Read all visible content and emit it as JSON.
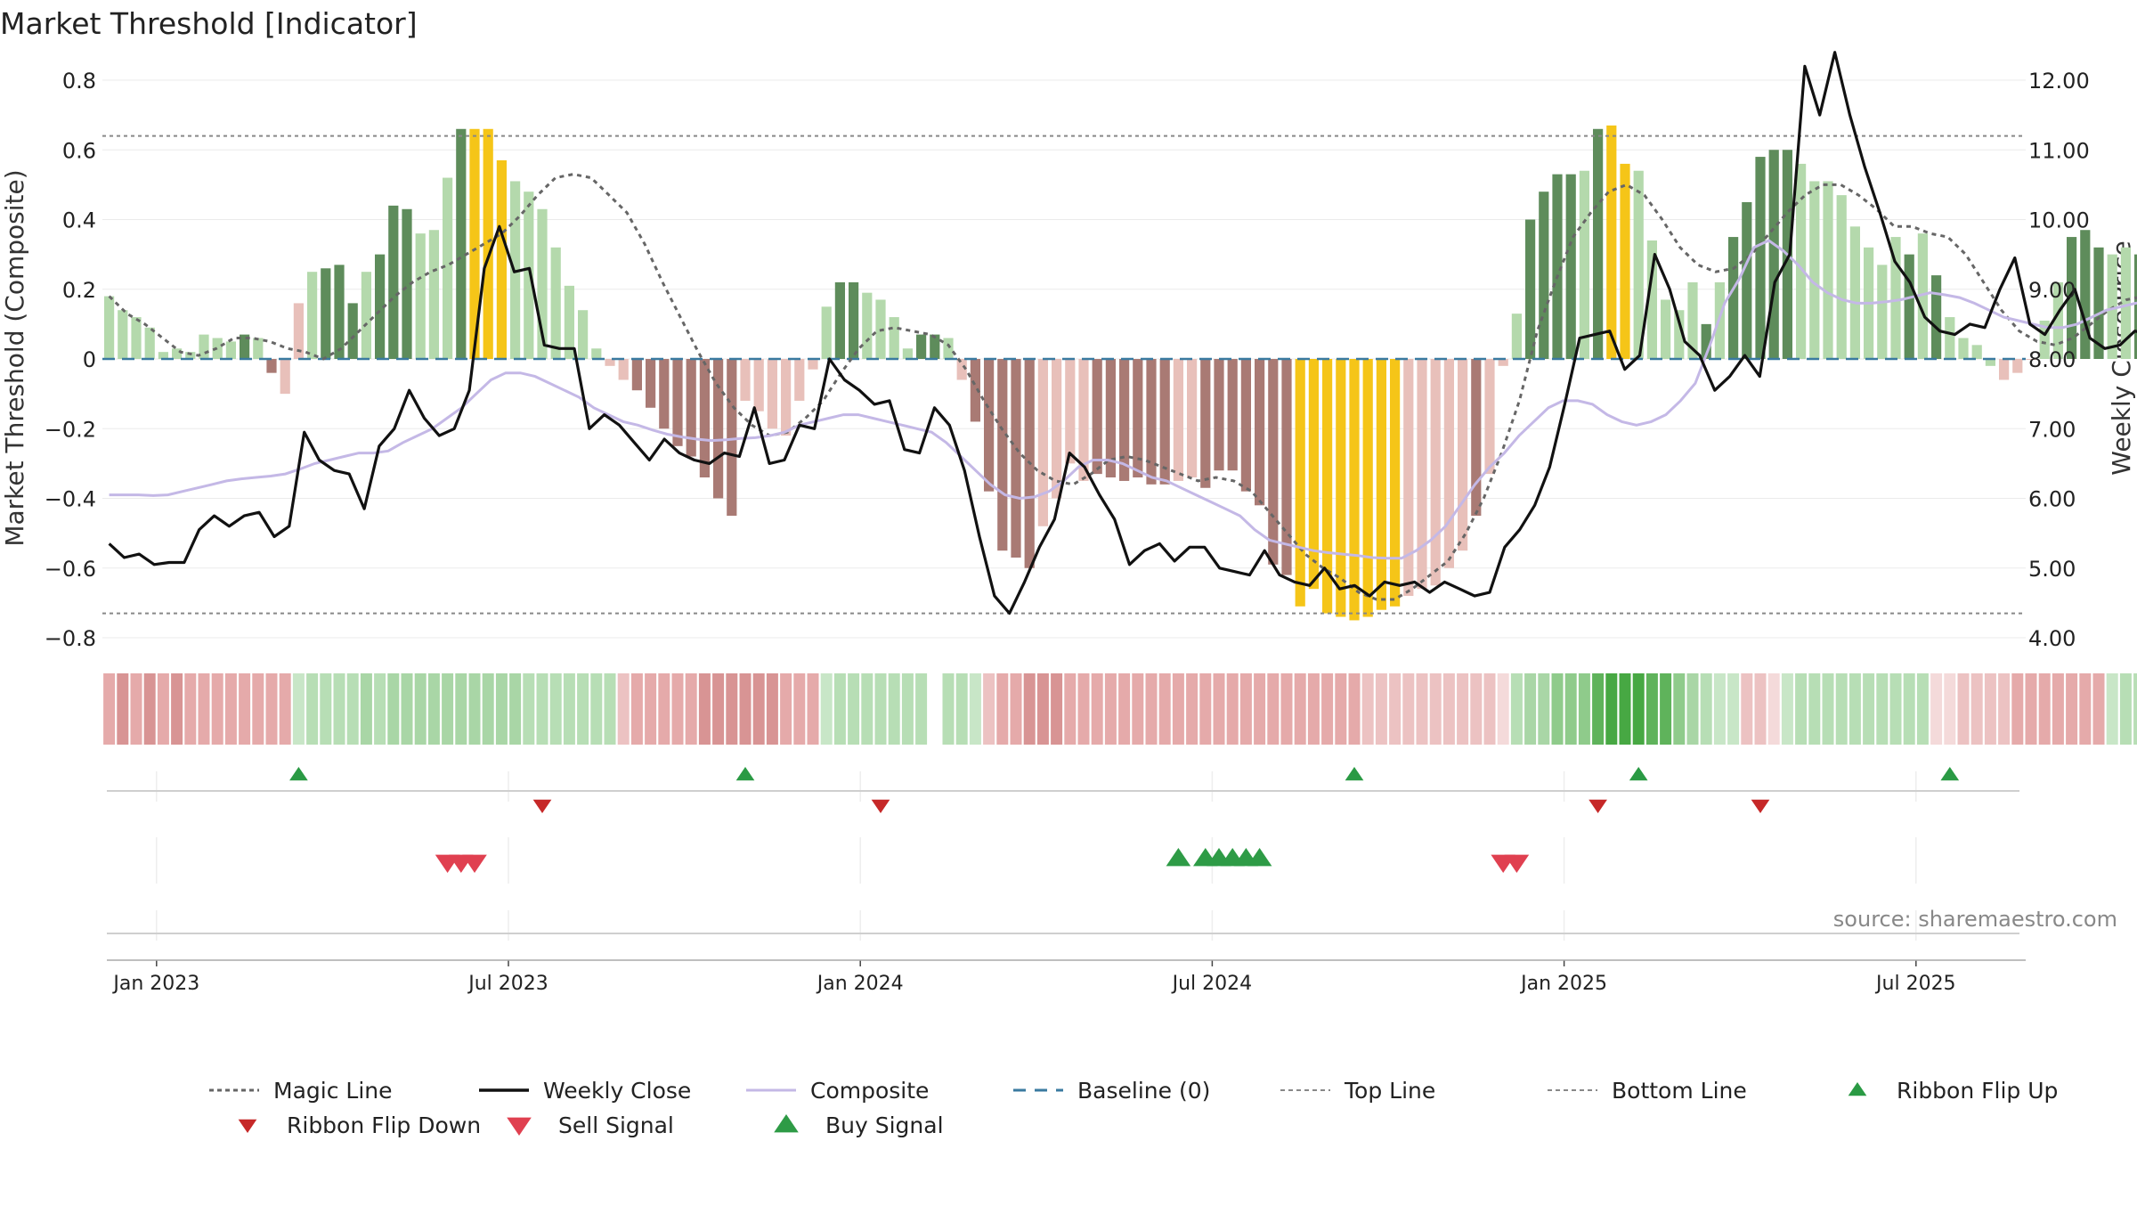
{
  "chart_data": {
    "type": "bar",
    "title": "Market Threshold [Indicator]",
    "ylabel_left": "Market Threshold (Composite)",
    "ylabel_right": "Weekly Close Price",
    "source": "source: sharemaestro.com",
    "ylim_left": [
      -0.8,
      0.8
    ],
    "ylim_right": [
      4.0,
      12.0
    ],
    "yticks_left": [
      {
        "v": 0.8,
        "label": "0.8"
      },
      {
        "v": 0.6,
        "label": "0.6"
      },
      {
        "v": 0.4,
        "label": "0.4"
      },
      {
        "v": 0.2,
        "label": "0.2"
      },
      {
        "v": 0,
        "label": "0"
      },
      {
        "v": -0.2,
        "label": "−0.2"
      },
      {
        "v": -0.4,
        "label": "−0.4"
      },
      {
        "v": -0.6,
        "label": "−0.6"
      },
      {
        "v": -0.8,
        "label": "−0.8"
      }
    ],
    "yticks_right": [
      {
        "v": 12,
        "label": "12.00"
      },
      {
        "v": 11,
        "label": "11.00"
      },
      {
        "v": 10,
        "label": "10.00"
      },
      {
        "v": 9,
        "label": "9.00"
      },
      {
        "v": 8,
        "label": "8.00"
      },
      {
        "v": 7,
        "label": "7.00"
      },
      {
        "v": 6,
        "label": "6.00"
      },
      {
        "v": 5,
        "label": "5.00"
      },
      {
        "v": 4,
        "label": "4.00"
      }
    ],
    "xticks": [
      {
        "w": 3.5,
        "label": "Jan 2023"
      },
      {
        "w": 29.5,
        "label": "Jul 2023"
      },
      {
        "w": 55.5,
        "label": "Jan 2024"
      },
      {
        "w": 81.5,
        "label": "Jul 2024"
      },
      {
        "w": 107.5,
        "label": "Jan 2025"
      },
      {
        "w": 133.5,
        "label": "Jul 2025"
      }
    ],
    "top_line": 0.64,
    "bottom_line": -0.73,
    "composite_values": [
      0.18,
      0.14,
      0.12,
      0.09,
      0.02,
      0.03,
      0.02,
      0.07,
      0.06,
      0.05,
      0.07,
      0.06,
      -0.04,
      -0.1,
      0.16,
      0.25,
      0.26,
      0.27,
      0.16,
      0.25,
      0.3,
      0.44,
      0.43,
      0.36,
      0.37,
      0.52,
      0.66,
      0.66,
      0.66,
      0.57,
      0.51,
      0.48,
      0.43,
      0.32,
      0.21,
      0.14,
      0.03,
      -0.02,
      -0.06,
      -0.09,
      -0.14,
      -0.2,
      -0.25,
      -0.28,
      -0.34,
      -0.4,
      -0.45,
      -0.12,
      -0.15,
      -0.2,
      -0.22,
      -0.12,
      -0.03,
      0.15,
      0.22,
      0.22,
      0.19,
      0.17,
      0.12,
      0.03,
      0.07,
      0.07,
      0.06,
      -0.06,
      -0.18,
      -0.38,
      -0.55,
      -0.57,
      -0.6,
      -0.48,
      -0.4,
      -0.3,
      -0.35,
      -0.33,
      -0.34,
      -0.35,
      -0.34,
      -0.36,
      -0.36,
      -0.35,
      -0.34,
      -0.37,
      -0.32,
      -0.32,
      -0.38,
      -0.42,
      -0.59,
      -0.62,
      -0.71,
      -0.66,
      -0.73,
      -0.74,
      -0.75,
      -0.74,
      -0.72,
      -0.71,
      -0.68,
      -0.66,
      -0.65,
      -0.6,
      -0.55,
      -0.45,
      -0.33,
      -0.02,
      0.13,
      0.4,
      0.48,
      0.53,
      0.53,
      0.54,
      0.66,
      0.67,
      0.56,
      0.54,
      0.34,
      0.17,
      0.14,
      0.22,
      0.1,
      0.22,
      0.35,
      0.45,
      0.58,
      0.6,
      0.6,
      0.56,
      0.51,
      0.51,
      0.47,
      0.38,
      0.32,
      0.27,
      0.35,
      0.3,
      0.36,
      0.24,
      0.12,
      0.06,
      0.04,
      -0.02,
      -0.06,
      -0.04,
      0,
      0.11,
      0.22,
      0.35,
      0.37,
      0.32,
      0.3,
      0.32,
      0.3,
      0.28,
      0.28,
      0.25
    ],
    "composite_colors": [
      "#b4d9ac",
      "#b4d9ac",
      "#b4d9ac",
      "#b4d9ac",
      "#b4d9ac",
      "#b4d9ac",
      "#b4d9ac",
      "#b4d9ac",
      "#b4d9ac",
      "#b4d9ac",
      "#5e8c5b",
      "#b4d9ac",
      "#a97a74",
      "#e8c0ba",
      "#e8c0ba",
      "#b4d9ac",
      "#5e8c5b",
      "#5e8c5b",
      "#5e8c5b",
      "#b4d9ac",
      "#5e8c5b",
      "#5e8c5b",
      "#5e8c5b",
      "#b4d9ac",
      "#b4d9ac",
      "#b4d9ac",
      "#5e8c5b",
      "#f5c518",
      "#f5c518",
      "#f5c518",
      "#b4d9ac",
      "#b4d9ac",
      "#b4d9ac",
      "#b4d9ac",
      "#b4d9ac",
      "#b4d9ac",
      "#b4d9ac",
      "#e8c0ba",
      "#e8c0ba",
      "#a97a74",
      "#a97a74",
      "#a97a74",
      "#a97a74",
      "#a97a74",
      "#a97a74",
      "#a97a74",
      "#a97a74",
      "#e8c0ba",
      "#e8c0ba",
      "#e8c0ba",
      "#e8c0ba",
      "#e8c0ba",
      "#e8c0ba",
      "#b4d9ac",
      "#5e8c5b",
      "#5e8c5b",
      "#b4d9ac",
      "#b4d9ac",
      "#b4d9ac",
      "#b4d9ac",
      "#5e8c5b",
      "#5e8c5b",
      "#b4d9ac",
      "#e8c0ba",
      "#a97a74",
      "#a97a74",
      "#a97a74",
      "#a97a74",
      "#a97a74",
      "#e8c0ba",
      "#e8c0ba",
      "#e8c0ba",
      "#e8c0ba",
      "#a97a74",
      "#a97a74",
      "#a97a74",
      "#a97a74",
      "#a97a74",
      "#a97a74",
      "#e8c0ba",
      "#e8c0ba",
      "#a97a74",
      "#a97a74",
      "#a97a74",
      "#a97a74",
      "#a97a74",
      "#a97a74",
      "#a97a74",
      "#f5c518",
      "#f5c518",
      "#f5c518",
      "#f5c518",
      "#f5c518",
      "#f5c518",
      "#f5c518",
      "#f5c518",
      "#e8c0ba",
      "#e8c0ba",
      "#e8c0ba",
      "#e8c0ba",
      "#e8c0ba",
      "#a97a74",
      "#e8c0ba",
      "#e8c0ba",
      "#b4d9ac",
      "#5e8c5b",
      "#5e8c5b",
      "#5e8c5b",
      "#5e8c5b",
      "#b4d9ac",
      "#5e8c5b",
      "#f5c518",
      "#f5c518",
      "#b4d9ac",
      "#b4d9ac",
      "#b4d9ac",
      "#b4d9ac",
      "#b4d9ac",
      "#5e8c5b",
      "#b4d9ac",
      "#5e8c5b",
      "#5e8c5b",
      "#5e8c5b",
      "#5e8c5b",
      "#5e8c5b",
      "#b4d9ac",
      "#b4d9ac",
      "#b4d9ac",
      "#b4d9ac",
      "#b4d9ac",
      "#b4d9ac",
      "#b4d9ac",
      "#b4d9ac",
      "#5e8c5b",
      "#b4d9ac",
      "#5e8c5b",
      "#b4d9ac",
      "#b4d9ac",
      "#b4d9ac",
      "#b4d9ac",
      "#e8c0ba",
      "#e8c0ba",
      "#e8c0ba",
      "#b4d9ac",
      "#b4d9ac",
      "#5e8c5b",
      "#5e8c5b",
      "#5e8c5b",
      "#b4d9ac",
      "#b4d9ac",
      "#5e8c5b",
      "#b4d9ac",
      "#b4d9ac",
      "#b4d9ac",
      "#b4d9ac"
    ],
    "magic_line": [
      0.18,
      0.13,
      0.1,
      0.06,
      0.02,
      0.01,
      0.03,
      0.06,
      0.06,
      0.05,
      0.03,
      0.02,
      0,
      0.03,
      0.08,
      0.13,
      0.18,
      0.22,
      0.25,
      0.27,
      0.3,
      0.33,
      0.36,
      0.41,
      0.47,
      0.52,
      0.53,
      0.52,
      0.47,
      0.42,
      0.33,
      0.22,
      0.12,
      0.02,
      -0.07,
      -0.14,
      -0.19,
      -0.22,
      -0.21,
      -0.17,
      -0.12,
      -0.04,
      0.03,
      0.08,
      0.09,
      0.08,
      0.07,
      0.04,
      -0.03,
      -0.12,
      -0.2,
      -0.27,
      -0.32,
      -0.35,
      -0.36,
      -0.33,
      -0.29,
      -0.28,
      -0.29,
      -0.31,
      -0.33,
      -0.35,
      -0.34,
      -0.35,
      -0.38,
      -0.44,
      -0.5,
      -0.56,
      -0.6,
      -0.63,
      -0.67,
      -0.69,
      -0.69,
      -0.66,
      -0.62,
      -0.58,
      -0.5,
      -0.4,
      -0.27,
      -0.12,
      0.08,
      0.22,
      0.35,
      0.42,
      0.48,
      0.5,
      0.47,
      0.4,
      0.32,
      0.27,
      0.25,
      0.26,
      0.3,
      0.36,
      0.42,
      0.47,
      0.5,
      0.5,
      0.47,
      0.43,
      0.38,
      0.38,
      0.36,
      0.35,
      0.3,
      0.22,
      0.14,
      0.08,
      0.05,
      0.04,
      0.06,
      0.1,
      0.14,
      0.17,
      0.18,
      0.2,
      0.18
    ],
    "magic_line_start": 0,
    "weekly_close": [
      5.35,
      5.15,
      5.2,
      5.05,
      5.08,
      5.08,
      5.55,
      5.75,
      5.6,
      5.75,
      5.8,
      5.45,
      5.6,
      6.95,
      6.55,
      6.4,
      6.35,
      5.85,
      6.75,
      7.0,
      7.55,
      7.15,
      6.9,
      7.0,
      7.55,
      9.3,
      9.9,
      9.25,
      9.3,
      8.2,
      8.15,
      8.15,
      7.0,
      7.2,
      7.05,
      6.8,
      6.55,
      6.85,
      6.65,
      6.55,
      6.5,
      6.65,
      6.6,
      7.3,
      6.5,
      6.55,
      7.05,
      7.0,
      8.0,
      7.7,
      7.55,
      7.35,
      7.4,
      6.7,
      6.65,
      7.3,
      7.05,
      6.4,
      5.45,
      4.6,
      4.35,
      4.8,
      5.3,
      5.7,
      6.65,
      6.45,
      6.05,
      5.7,
      5.05,
      5.25,
      5.35,
      5.1,
      5.3,
      5.3,
      5.0,
      4.95,
      4.9,
      5.25,
      4.9,
      4.8,
      4.75,
      5.0,
      4.7,
      4.75,
      4.6,
      4.8,
      4.75,
      4.8,
      4.65,
      4.8,
      4.7,
      4.6,
      4.65,
      5.3,
      5.55,
      5.9,
      6.45,
      7.35,
      8.3,
      8.35,
      8.4,
      7.85,
      8.05,
      9.5,
      9.0,
      8.25,
      8.05,
      7.55,
      7.75,
      8.05,
      7.75,
      9.1,
      9.5,
      12.2,
      11.5,
      12.4,
      11.5,
      10.75,
      10.1,
      9.4,
      9.1,
      8.6,
      8.4,
      8.35,
      8.5,
      8.45,
      9.0,
      9.45,
      8.5,
      8.35,
      8.7,
      9.0,
      8.3,
      8.15,
      8.2,
      8.4,
      8.35,
      8.05,
      8.1
    ],
    "close_weeks": [
      0,
      1,
      2,
      3,
      4,
      5,
      6,
      7,
      8,
      9,
      10,
      11,
      12,
      13,
      14,
      15,
      16,
      17,
      18,
      19,
      20,
      21,
      22,
      23,
      24,
      25,
      26,
      27,
      28,
      29,
      30,
      31,
      32,
      33,
      34,
      35,
      36,
      37,
      38,
      39,
      40,
      41,
      42,
      43,
      44,
      45,
      46,
      47,
      48,
      49,
      50,
      51,
      52,
      53,
      54,
      55,
      56,
      57,
      58,
      59,
      60,
      61,
      62,
      63,
      64,
      65,
      66,
      67,
      68,
      69,
      70,
      71,
      72,
      73,
      74,
      75,
      76,
      77,
      78,
      79,
      80,
      81,
      82,
      83,
      84,
      85,
      86,
      87,
      88,
      89,
      90,
      91,
      92,
      93,
      94,
      95,
      96,
      97,
      98,
      99,
      100,
      101,
      102,
      103,
      104,
      105,
      106,
      107,
      108,
      109,
      110,
      111,
      112,
      113,
      114,
      115,
      116,
      117,
      118,
      119,
      120,
      121,
      122,
      123,
      124,
      125,
      126,
      127,
      128,
      129,
      130,
      131,
      132,
      133,
      134,
      135,
      136,
      137,
      138,
      139
    ],
    "composite_line": [
      6.05,
      6.05,
      6.05,
      6.04,
      6.05,
      6.1,
      6.15,
      6.2,
      6.25,
      6.28,
      6.3,
      6.32,
      6.35,
      6.42,
      6.5,
      6.55,
      6.6,
      6.65,
      6.65,
      6.68,
      6.8,
      6.9,
      7.0,
      7.15,
      7.3,
      7.5,
      7.7,
      7.8,
      7.8,
      7.75,
      7.65,
      7.55,
      7.45,
      7.3,
      7.2,
      7.1,
      7.05,
      6.98,
      6.92,
      6.88,
      6.85,
      6.83,
      6.84,
      6.86,
      6.87,
      6.9,
      6.95,
      7.05,
      7.1,
      7.15,
      7.2,
      7.2,
      7.15,
      7.1,
      7.05,
      7.0,
      6.95,
      6.8,
      6.6,
      6.4,
      6.2,
      6.05,
      6.0,
      6.02,
      6.1,
      6.25,
      6.45,
      6.55,
      6.55,
      6.5,
      6.4,
      6.3,
      6.25,
      6.15,
      6.05,
      5.95,
      5.85,
      5.75,
      5.55,
      5.4,
      5.35,
      5.3,
      5.25,
      5.22,
      5.2,
      5.18,
      5.15,
      5.14,
      5.14,
      5.25,
      5.4,
      5.6,
      5.9,
      6.2,
      6.45,
      6.65,
      6.9,
      7.1,
      7.3,
      7.4,
      7.4,
      7.35,
      7.2,
      7.1,
      7.05,
      7.1,
      7.2,
      7.4,
      7.65,
      8.2,
      8.8,
      9.15,
      9.6,
      9.7,
      9.55,
      9.35,
      9.1,
      8.95,
      8.85,
      8.8,
      8.8,
      8.82,
      8.85,
      8.9,
      8.95,
      8.92,
      8.88,
      8.8,
      8.7,
      8.6,
      8.55,
      8.5,
      8.45,
      8.45,
      8.5,
      8.6,
      8.7,
      8.75,
      8.8,
      8.82,
      8.83,
      8.83
    ],
    "ribbon_colors": [
      "#e5aaaa",
      "#d89494",
      "#e5aaaa",
      "#d89494",
      "#e5aaaa",
      "#d89494",
      "#e5aaaa",
      "#e5aaaa",
      "#e5aaaa",
      "#e5aaaa",
      "#e5aaaa",
      "#e5aaaa",
      "#e5aaaa",
      "#e5aaaa",
      "#c8e6c7",
      "#b7deb5",
      "#b7deb5",
      "#b7deb5",
      "#b7deb5",
      "#a9d6a6",
      "#b7deb5",
      "#a9d6a6",
      "#a9d6a6",
      "#a9d6a6",
      "#a9d6a6",
      "#a9d6a6",
      "#a9d6a6",
      "#a9d6a6",
      "#a9d6a6",
      "#a9d6a6",
      "#a9d6a6",
      "#b7deb5",
      "#b7deb5",
      "#b7deb5",
      "#b7deb5",
      "#b7deb5",
      "#b7deb5",
      "#b7deb5",
      "#ecc2c2",
      "#e5aaaa",
      "#e5aaaa",
      "#e5aaaa",
      "#e5aaaa",
      "#e5aaaa",
      "#d89494",
      "#d89494",
      "#d89494",
      "#d89494",
      "#d89494",
      "#d89494",
      "#e5aaaa",
      "#e5aaaa",
      "#e5aaaa",
      "#c8e6c7",
      "#b7deb5",
      "#b7deb5",
      "#b7deb5",
      "#b7deb5",
      "#b7deb5",
      "#b7deb5",
      "#b7deb5",
      "#b7deb5",
      "#b7deb5",
      "#b7deb5",
      "#c8e6c7",
      "#ecc2c2",
      "#e5aaaa",
      "#e5aaaa",
      "#d89494",
      "#d89494",
      "#d89494",
      "#e5aaaa",
      "#e5aaaa",
      "#e5aaaa",
      "#e5aaaa",
      "#e5aaaa",
      "#e5aaaa",
      "#e5aaaa",
      "#e5aaaa",
      "#e5aaaa",
      "#e5aaaa",
      "#e5aaaa",
      "#e5aaaa",
      "#e5aaaa",
      "#e5aaaa",
      "#e5aaaa",
      "#e5aaaa",
      "#e5aaaa",
      "#e5aaaa",
      "#e5aaaa",
      "#e5aaaa",
      "#e5aaaa",
      "#e5aaaa",
      "#ecc2c2",
      "#ecc2c2",
      "#ecc2c2",
      "#ecc2c2",
      "#ecc2c2",
      "#ecc2c2",
      "#ecc2c2",
      "#ecc2c2",
      "#ecc2c2",
      "#ecc2c2",
      "#f4dada",
      "#b7deb5",
      "#a9d6a6",
      "#a9d6a6",
      "#8fcb8b",
      "#8fcb8b",
      "#8fcb8b",
      "#5fb35b",
      "#47a843",
      "#47a843",
      "#47a843",
      "#5fb35b",
      "#5fb35b",
      "#8fcb8b",
      "#a9d6a6",
      "#b7deb5",
      "#c8e6c7",
      "#c8e6c7",
      "#ecc2c2",
      "#ecc2c2",
      "#f4dada",
      "#c8e6c7",
      "#b7deb5",
      "#b7deb5",
      "#b7deb5",
      "#b7deb5",
      "#b7deb5",
      "#b7deb5",
      "#b7deb5",
      "#b7deb5",
      "#b7deb5",
      "#b7deb5",
      "#f4dada",
      "#f4dada",
      "#ecc2c2",
      "#ecc2c2",
      "#ecc2c2",
      "#ecc2c2",
      "#e5aaaa",
      "#e5aaaa",
      "#e5aaaa",
      "#e5aaaa",
      "#e5aaaa",
      "#e5aaaa",
      "#e5aaaa",
      "#c8e6c7",
      "#b7deb5",
      "#b7deb5",
      "#b7deb5",
      "#b7deb5",
      "#b7deb5",
      "#b7deb5",
      "#b7deb5"
    ],
    "ribbon_gap_week": 61,
    "ribbon_flip_up_weeks": [
      14,
      47,
      92,
      113,
      136
    ],
    "ribbon_flip_down_weeks": [
      32,
      57,
      110,
      122
    ],
    "buy_signal_weeks": [
      79,
      81,
      82,
      83,
      84,
      85
    ],
    "sell_signal_weeks": [
      25,
      26,
      27,
      103,
      104
    ],
    "legend": [
      {
        "label": "Magic Line",
        "kind": "dotted",
        "color": "#666666"
      },
      {
        "label": "Weekly Close",
        "kind": "solid",
        "color": "#111111"
      },
      {
        "label": "Composite",
        "kind": "thin",
        "color": "#c4b8e6"
      },
      {
        "label": "Baseline (0)",
        "kind": "dashed",
        "color": "#3a7aa0"
      },
      {
        "label": "Top Line",
        "kind": "dotted-light",
        "color": "#888888"
      },
      {
        "label": "Bottom Line",
        "kind": "dotted-light",
        "color": "#888888"
      },
      {
        "label": "Ribbon Flip Up",
        "kind": "tri-up",
        "color": "#2a9a44"
      },
      {
        "label": "Ribbon Flip Down",
        "kind": "tri-down",
        "color": "#c62828"
      },
      {
        "label": "Sell Signal",
        "kind": "tri-down-big",
        "color": "#e04050"
      },
      {
        "label": "Buy Signal",
        "kind": "tri-up-big",
        "color": "#2e9b46"
      }
    ],
    "colors": {
      "strong_green": "#5e8c5b",
      "light_green": "#b4d9ac",
      "strong_red": "#a97a74",
      "light_red": "#e8c0ba",
      "extreme": "#f5c518",
      "baseline": "#3a7aa0"
    }
  }
}
